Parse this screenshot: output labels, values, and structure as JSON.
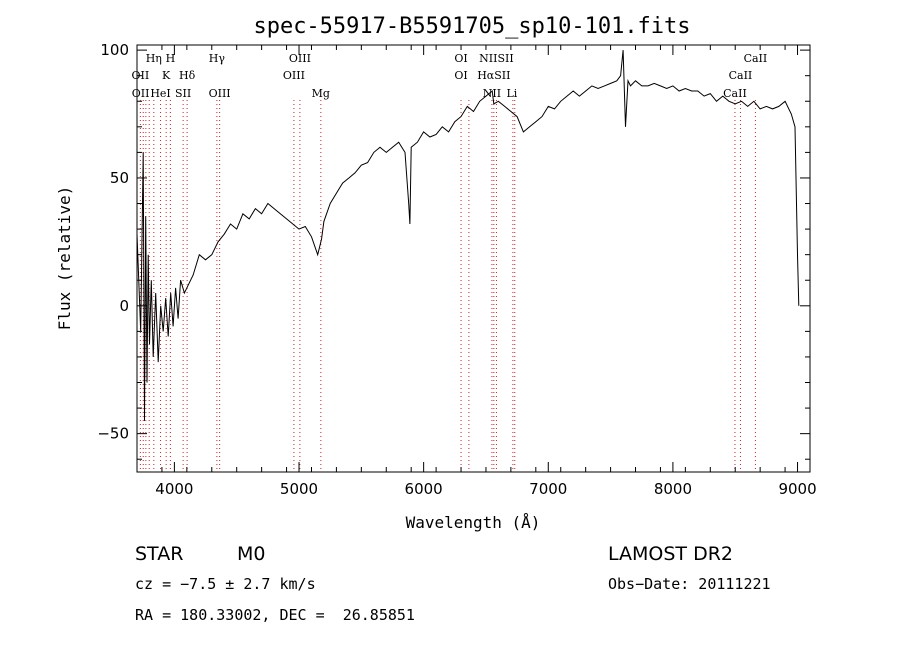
{
  "chart_data": {
    "type": "line",
    "title": "spec-55917-B5591705_sp10-101.fits",
    "xlabel": "Wavelength (Å)",
    "ylabel": "Flux (relative)",
    "xlim": [
      3700,
      9100
    ],
    "ylim": [
      -65,
      102
    ],
    "x_ticks": [
      4000,
      5000,
      6000,
      7000,
      8000,
      9000
    ],
    "y_ticks": [
      -50,
      0,
      50,
      100
    ],
    "grid": false,
    "series": [
      {
        "x": [
          3700,
          3730,
          3750,
          3760,
          3770,
          3780,
          3790,
          3800,
          3815,
          3830,
          3850,
          3870,
          3890,
          3910,
          3930,
          3950,
          3970,
          3990,
          4010,
          4030,
          4050,
          4080,
          4110,
          4150,
          4200,
          4250,
          4300,
          4350,
          4400,
          4450,
          4500,
          4550,
          4600,
          4650,
          4700,
          4750,
          4800,
          4850,
          4900,
          4950,
          5000,
          5050,
          5100,
          5150,
          5180,
          5200,
          5250,
          5300,
          5350,
          5400,
          5450,
          5500,
          5550,
          5600,
          5650,
          5700,
          5750,
          5800,
          5850,
          5880,
          5890,
          5900,
          5950,
          6000,
          6050,
          6100,
          6150,
          6200,
          6250,
          6300,
          6350,
          6400,
          6450,
          6500,
          6550,
          6563,
          6600,
          6650,
          6700,
          6750,
          6800,
          6850,
          6900,
          6950,
          7000,
          7050,
          7100,
          7150,
          7200,
          7250,
          7300,
          7350,
          7400,
          7450,
          7500,
          7550,
          7580,
          7600,
          7620,
          7640,
          7660,
          7700,
          7750,
          7800,
          7850,
          7900,
          7950,
          8000,
          8050,
          8100,
          8150,
          8200,
          8250,
          8300,
          8350,
          8400,
          8450,
          8500,
          8550,
          8600,
          8650,
          8700,
          8750,
          8800,
          8850,
          8900,
          8950,
          8980,
          9000,
          9010
        ],
        "y": [
          28,
          -10,
          60,
          -45,
          35,
          -30,
          20,
          -15,
          10,
          -20,
          5,
          -22,
          0,
          -10,
          3,
          -12,
          5,
          -8,
          7,
          -5,
          10,
          5,
          8,
          12,
          20,
          18,
          20,
          25,
          28,
          32,
          30,
          36,
          34,
          38,
          36,
          40,
          38,
          36,
          34,
          32,
          30,
          31,
          27,
          20,
          26,
          33,
          40,
          44,
          48,
          50,
          52,
          55,
          56,
          60,
          62,
          60,
          62,
          64,
          60,
          40,
          32,
          62,
          64,
          68,
          66,
          67,
          70,
          68,
          72,
          74,
          78,
          76,
          80,
          82,
          84,
          79,
          80,
          78,
          76,
          74,
          68,
          70,
          72,
          74,
          78,
          77,
          80,
          82,
          84,
          82,
          84,
          86,
          85,
          86,
          87,
          88,
          90,
          100,
          70,
          88,
          86,
          88,
          86,
          86,
          87,
          86,
          85,
          86,
          84,
          85,
          84,
          84,
          82,
          83,
          80,
          82,
          80,
          79,
          80,
          78,
          80,
          77,
          78,
          77,
          78,
          80,
          75,
          70,
          20,
          0
        ]
      }
    ],
    "spectral_lines": [
      {
        "label": "OII",
        "x": 3727,
        "row": 1
      },
      {
        "label": "Hη",
        "x": 3835,
        "row": 0
      },
      {
        "label": "H",
        "x": 3968,
        "row": 0
      },
      {
        "label": "OII",
        "x": 3729,
        "row": 2
      },
      {
        "label": "K",
        "x": 3934,
        "row": 1
      },
      {
        "label": "HeI",
        "x": 3889,
        "row": 2
      },
      {
        "label": "SII",
        "x": 4070,
        "row": 2
      },
      {
        "label": "Hδ",
        "x": 4102,
        "row": 1
      },
      {
        "label": "Hγ",
        "x": 4341,
        "row": 0
      },
      {
        "label": "OIII",
        "x": 4363,
        "row": 2
      },
      {
        "label": "OIII",
        "x": 5007,
        "row": 0
      },
      {
        "label": "OIII",
        "x": 4959,
        "row": 1
      },
      {
        "label": "Mg",
        "x": 5175,
        "row": 2
      },
      {
        "label": "OI",
        "x": 6300,
        "row": 0
      },
      {
        "label": "OI",
        "x": 6300,
        "row": 1
      },
      {
        "label": "NIISII",
        "x": 6584,
        "row": 0
      },
      {
        "label": "HαSII",
        "x": 6563,
        "row": 1
      },
      {
        "label": "NII",
        "x": 6548,
        "row": 2
      },
      {
        "label": "Li",
        "x": 6708,
        "row": 2
      },
      {
        "label": "CaII",
        "x": 8662,
        "row": 0
      },
      {
        "label": "CaII",
        "x": 8542,
        "row": 1
      },
      {
        "label": "CaII",
        "x": 8498,
        "row": 2
      }
    ],
    "line_markers_x": [
      3727,
      3750,
      3771,
      3798,
      3835,
      3889,
      3934,
      3968,
      4070,
      4102,
      4341,
      4363,
      4959,
      5007,
      5175,
      6300,
      6363,
      6548,
      6563,
      6584,
      6716,
      6731,
      8498,
      8542,
      8662
    ]
  },
  "info": {
    "object_class": "STAR",
    "subclass": "M0",
    "survey": "LAMOST DR2",
    "cz": "cz = −7.5 ± 2.7 km/s",
    "obs_date": "Obs−Date: 20111221",
    "coords": "RA = 180.33002, DEC =  26.85851"
  },
  "colors": {
    "spectrum": "#000000",
    "marker_line": "#cc2222",
    "axis": "#000000"
  }
}
